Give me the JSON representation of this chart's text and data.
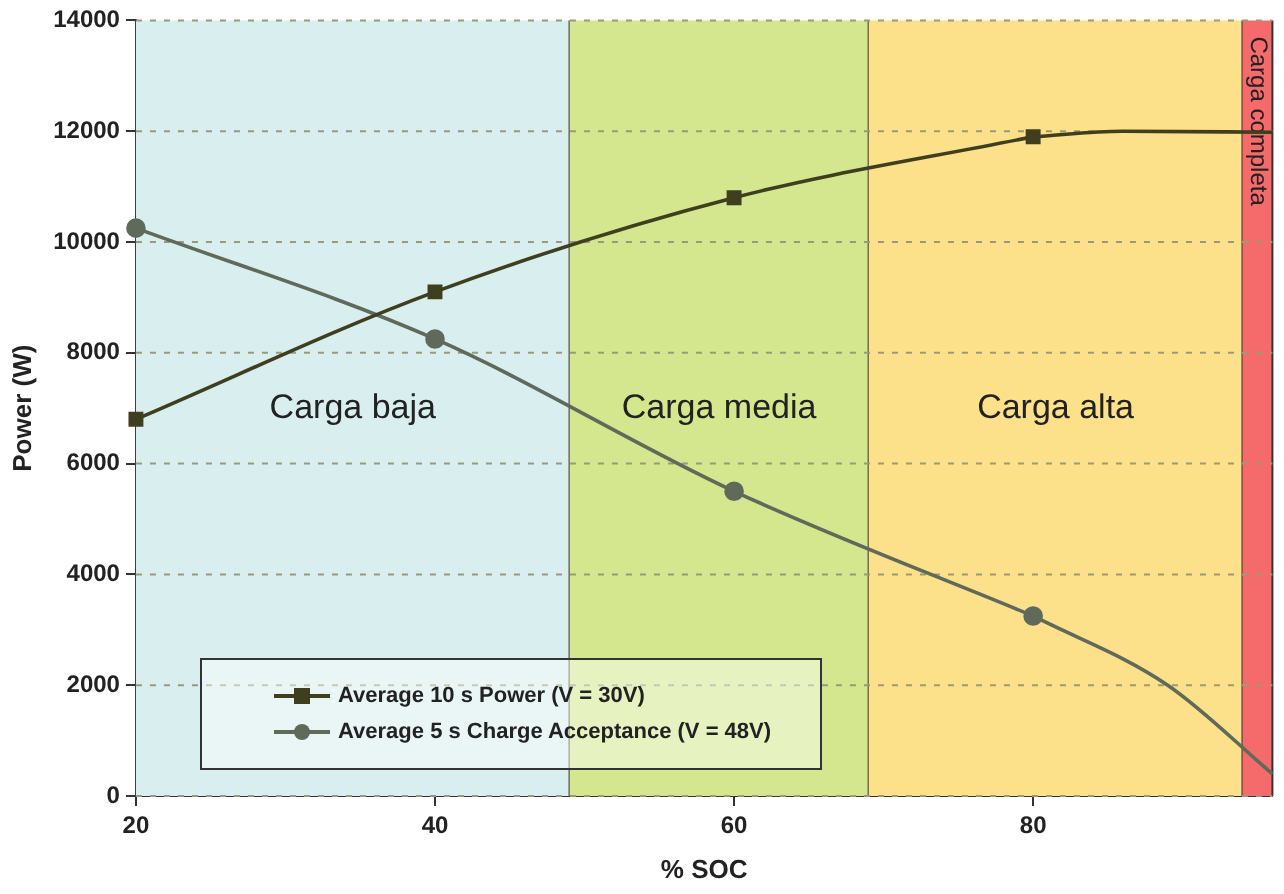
{
  "chart_data": {
    "type": "line",
    "xlabel": "% SOC",
    "ylabel": "Power (W)",
    "xlim": [
      20,
      96
    ],
    "xticks": [
      20,
      40,
      60,
      80
    ],
    "ylim": [
      0,
      14000
    ],
    "yticks": [
      0,
      2000,
      4000,
      6000,
      8000,
      10000,
      12000,
      14000
    ],
    "grid": "y",
    "legend": "bottom left",
    "series": [
      {
        "name": "Average 10 s Power (V = 30V)",
        "color": "#3f3f1f",
        "marker": "square",
        "x": [
          20,
          40,
          60,
          80
        ],
        "values": [
          6800,
          9100,
          10800,
          11900
        ]
      },
      {
        "name": "Average 5 s Charge Acceptance (V = 48V)",
        "color": "#5f6a5a",
        "marker": "circle",
        "x": [
          20,
          40,
          60,
          80
        ],
        "values": [
          10250,
          8250,
          5500,
          3250
        ]
      },
      {
        "color": "#3f3f1f",
        "marker": "none",
        "x": [
          80,
          86,
          96
        ],
        "values": [
          11900,
          12000,
          11980
        ]
      },
      {
        "color": "#5f6a5a",
        "marker": "none",
        "x": [
          80,
          89,
          96
        ],
        "values": [
          3250,
          2000,
          400
        ]
      }
    ],
    "bands": [
      {
        "axis": "x",
        "from": 20,
        "to": 49,
        "label": "Carga baja",
        "color": "#d9eeee"
      },
      {
        "axis": "x",
        "from": 49,
        "to": 69,
        "label": "Carga media",
        "color": "#d4e78f"
      },
      {
        "axis": "x",
        "from": 69,
        "to": 94,
        "label": "Carga alta",
        "color": "#fde08a"
      },
      {
        "axis": "x",
        "from": 94,
        "to": 96,
        "label": "Carga completa",
        "color": "#f56a6a"
      }
    ]
  }
}
